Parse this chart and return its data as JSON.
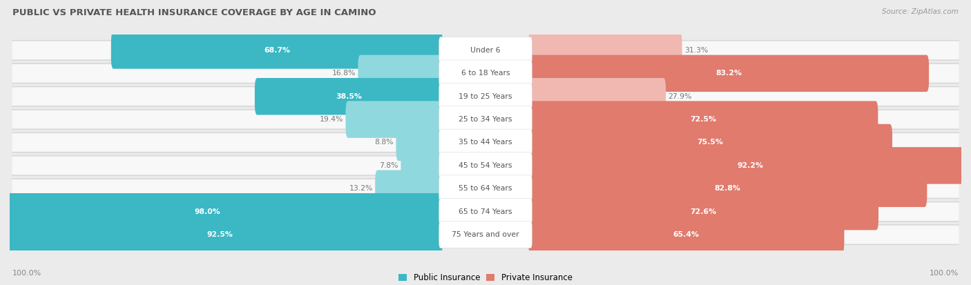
{
  "title": "PUBLIC VS PRIVATE HEALTH INSURANCE COVERAGE BY AGE IN CAMINO",
  "source": "Source: ZipAtlas.com",
  "categories": [
    "Under 6",
    "6 to 18 Years",
    "19 to 25 Years",
    "25 to 34 Years",
    "35 to 44 Years",
    "45 to 54 Years",
    "55 to 64 Years",
    "65 to 74 Years",
    "75 Years and over"
  ],
  "public_values": [
    68.7,
    16.8,
    38.5,
    19.4,
    8.8,
    7.8,
    13.2,
    98.0,
    92.5
  ],
  "private_values": [
    31.3,
    83.2,
    27.9,
    72.5,
    75.5,
    92.2,
    82.8,
    72.6,
    65.4
  ],
  "public_color_dark": "#3bb8c3",
  "public_color_light": "#8fd8de",
  "private_color_dark": "#e07b6e",
  "private_color_light": "#f0b8b0",
  "row_bg_color": "#e8e8e8",
  "row_fill_color": "#f5f5f5",
  "bg_color": "#ebebeb",
  "label_pill_color": "#ffffff",
  "title_color": "#555555",
  "value_white": "#ffffff",
  "value_gray": "#777777",
  "center_label_color": "#555555",
  "legend_public": "Public Insurance",
  "legend_private": "Private Insurance",
  "axis_label_left": "100.0%",
  "axis_label_right": "100.0%",
  "max_value": 100.0,
  "pub_threshold": 20,
  "priv_threshold": 40
}
